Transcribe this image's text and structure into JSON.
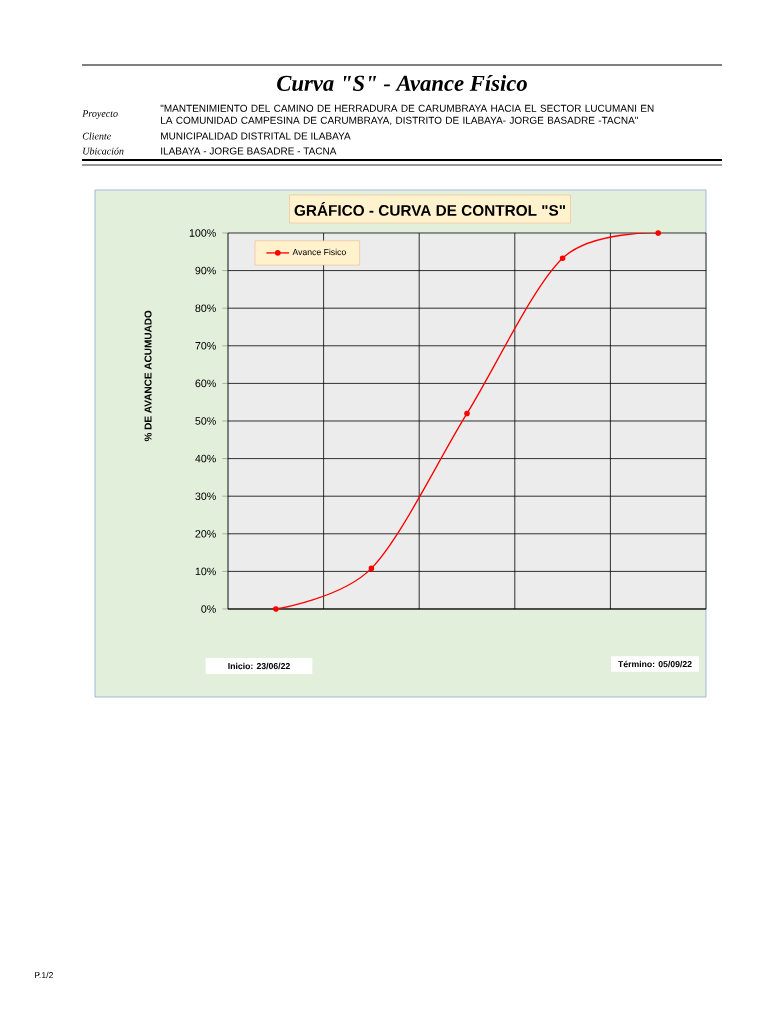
{
  "chart_data": {
    "type": "line",
    "title": "Curva \"S\" - Avance Físico",
    "subtitle": "GRÁFICO - CURVA DE CONTROL \"S\"",
    "ylabel": "% DE AVANCE ACUMUADO",
    "annotations": [
      "Proyecto",
      "\"MANTENIMIENTO DEL CAMINO DE HERRADURA DE CARUMBRAYA HACIA EL SECTOR LUCUMANI EN LA COMUNIDAD CAMPESINA DE CARUMBRAYA, DISTRITO DE ILABAYA- JORGE  BASADRE -TACNA\"",
      "Cliente",
      "MUNICIPALIDAD DISTRITAL DE ILABAYA",
      "Ubicación",
      "ILABAYA - JORGE BASADRE - TACNA",
      "Inicio: 23/06/22",
      "Término: 05/09/22",
      "P.1/2"
    ],
    "categories": [
      null,
      null,
      null,
      null,
      null
    ],
    "series": [
      {
        "name": "Avance Fisico",
        "color": "#ff0000",
        "values": [
          0,
          10.8,
          52,
          93.3,
          100
        ]
      }
    ],
    "ylim": [
      0,
      100
    ],
    "yticks": [
      {
        "value": 0,
        "label": "0%"
      },
      {
        "value": 10,
        "label": "10%"
      },
      {
        "value": 20,
        "label": "20%"
      },
      {
        "value": 30,
        "label": "30%"
      },
      {
        "value": 40,
        "label": "40%"
      },
      {
        "value": 50,
        "label": "50%"
      },
      {
        "value": 60,
        "label": "60%"
      },
      {
        "value": 70,
        "label": "70%"
      },
      {
        "value": 80,
        "label": "80%"
      },
      {
        "value": 90,
        "label": "90%"
      },
      {
        "value": 100,
        "label": "100%"
      }
    ],
    "grid": true,
    "legend": "top left",
    "marker": "circle"
  }
}
